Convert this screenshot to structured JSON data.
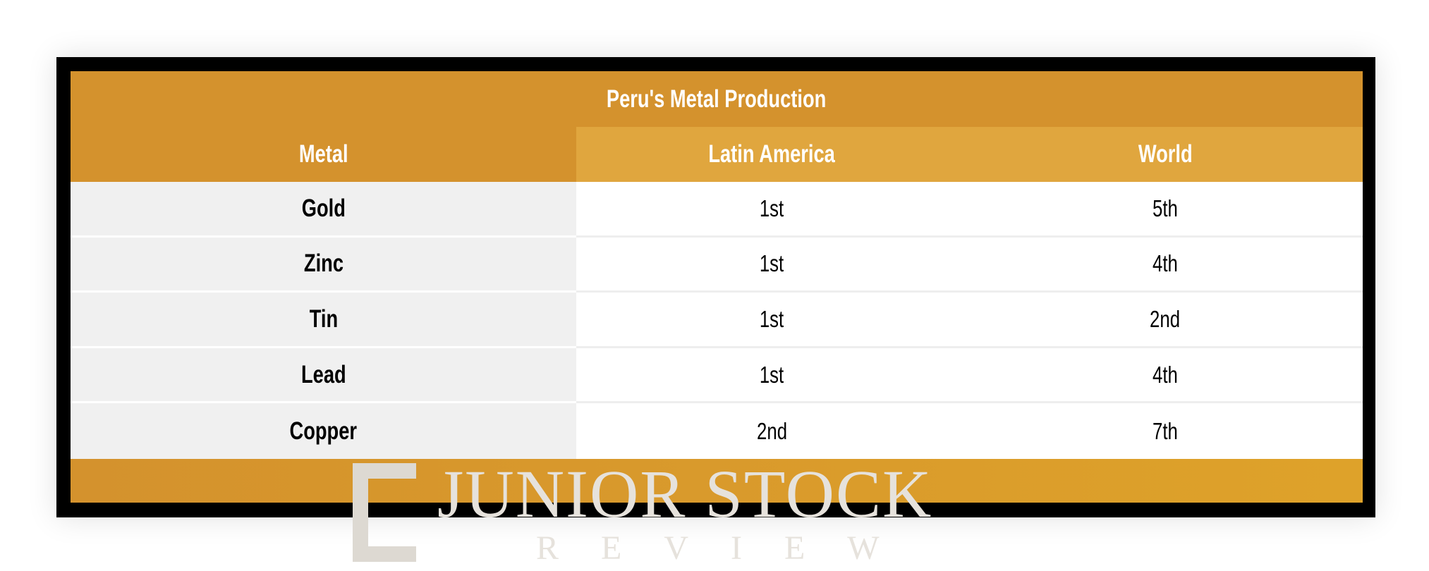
{
  "table": {
    "title": "Peru's Metal Production",
    "headers": [
      "Metal",
      "Latin America",
      "World"
    ],
    "rows": [
      {
        "metal": "Gold",
        "latin_america": "1st",
        "world": "5th"
      },
      {
        "metal": "Zinc",
        "latin_america": "1st",
        "world": "4th"
      },
      {
        "metal": "Tin",
        "latin_america": "1st",
        "world": "2nd"
      },
      {
        "metal": "Lead",
        "latin_america": "1st",
        "world": "4th"
      },
      {
        "metal": "Copper",
        "latin_america": "2nd",
        "world": "7th"
      }
    ]
  },
  "watermark": {
    "main": "JUNIOR STOCK",
    "sub": "REVIEW"
  },
  "colors": {
    "accent": "#d4922d",
    "header_light": "#e0a63e",
    "frame": "#000000"
  }
}
